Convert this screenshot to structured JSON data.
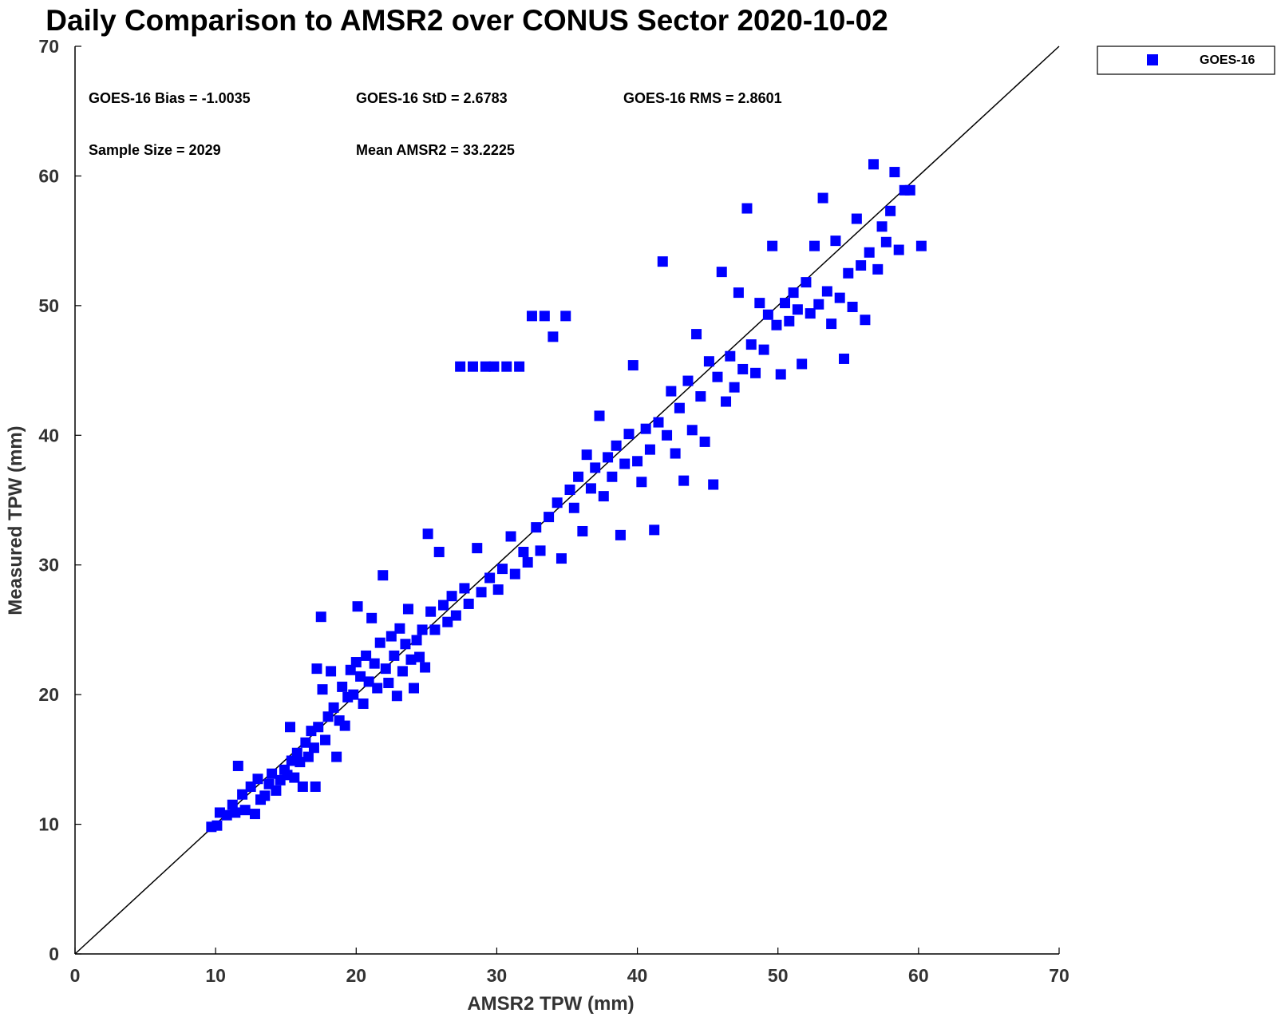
{
  "chart_data": {
    "type": "scatter",
    "title": "Daily Comparison to AMSR2 over CONUS Sector 2020-10-02",
    "xlabel": "AMSR2 TPW (mm)",
    "ylabel": "Measured TPW (mm)",
    "xlim": [
      0,
      70
    ],
    "ylim": [
      0,
      70
    ],
    "xticks": [
      "0",
      "10",
      "20",
      "30",
      "40",
      "50",
      "60",
      "70"
    ],
    "yticks": [
      "0",
      "10",
      "20",
      "30",
      "40",
      "50",
      "60",
      "70"
    ],
    "grid": false,
    "legend": {
      "position": "top-right-outside",
      "entries": [
        "GOES-16"
      ]
    },
    "reference_line": {
      "label": "1:1",
      "from": [
        0,
        0
      ],
      "to": [
        70,
        70
      ]
    },
    "stats": {
      "bias": "GOES-16 Bias = -1.0035",
      "std": "GOES-16 StD = 2.6783",
      "rms": "GOES-16 RMS = 2.8601",
      "sample_size": "Sample Size = 2029",
      "mean": "Mean AMSR2 = 33.2225"
    },
    "series": [
      {
        "name": "GOES-16",
        "color": "#0000ff",
        "marker": "square",
        "points": [
          [
            9.7,
            9.8
          ],
          [
            10.1,
            9.9
          ],
          [
            10.3,
            10.9
          ],
          [
            10.8,
            10.7
          ],
          [
            11.2,
            11.5
          ],
          [
            11.4,
            10.9
          ],
          [
            11.6,
            14.5
          ],
          [
            11.9,
            12.3
          ],
          [
            12.1,
            11.1
          ],
          [
            12.5,
            12.9
          ],
          [
            12.8,
            10.8
          ],
          [
            13.0,
            13.5
          ],
          [
            13.2,
            11.9
          ],
          [
            13.5,
            12.2
          ],
          [
            13.8,
            13.1
          ],
          [
            14.0,
            13.9
          ],
          [
            14.3,
            12.6
          ],
          [
            14.6,
            13.4
          ],
          [
            14.9,
            14.2
          ],
          [
            15.1,
            13.8
          ],
          [
            15.3,
            17.5
          ],
          [
            15.4,
            14.9
          ],
          [
            15.6,
            13.6
          ],
          [
            15.8,
            15.5
          ],
          [
            16.0,
            14.8
          ],
          [
            16.2,
            12.9
          ],
          [
            16.4,
            16.3
          ],
          [
            16.6,
            15.2
          ],
          [
            16.8,
            17.2
          ],
          [
            17.0,
            15.9
          ],
          [
            17.1,
            12.9
          ],
          [
            17.2,
            22.0
          ],
          [
            17.3,
            17.5
          ],
          [
            17.5,
            26.0
          ],
          [
            17.6,
            20.4
          ],
          [
            17.8,
            16.5
          ],
          [
            18.0,
            18.3
          ],
          [
            18.2,
            21.8
          ],
          [
            18.4,
            19.0
          ],
          [
            18.6,
            15.2
          ],
          [
            18.8,
            18.0
          ],
          [
            19.0,
            20.6
          ],
          [
            19.2,
            17.6
          ],
          [
            19.4,
            19.8
          ],
          [
            19.6,
            21.9
          ],
          [
            19.8,
            20.0
          ],
          [
            20.0,
            22.5
          ],
          [
            20.1,
            26.8
          ],
          [
            20.3,
            21.4
          ],
          [
            20.5,
            19.3
          ],
          [
            20.7,
            23.0
          ],
          [
            20.9,
            21.0
          ],
          [
            21.1,
            25.9
          ],
          [
            21.3,
            22.4
          ],
          [
            21.5,
            20.5
          ],
          [
            21.7,
            24.0
          ],
          [
            21.9,
            29.2
          ],
          [
            22.1,
            22.0
          ],
          [
            22.3,
            20.9
          ],
          [
            22.5,
            24.5
          ],
          [
            22.7,
            23.0
          ],
          [
            22.9,
            19.9
          ],
          [
            23.1,
            25.1
          ],
          [
            23.3,
            21.8
          ],
          [
            23.5,
            23.9
          ],
          [
            23.7,
            26.6
          ],
          [
            23.9,
            22.7
          ],
          [
            24.1,
            20.5
          ],
          [
            24.3,
            24.2
          ],
          [
            24.5,
            22.9
          ],
          [
            24.7,
            25.0
          ],
          [
            24.9,
            22.1
          ],
          [
            25.1,
            32.4
          ],
          [
            25.3,
            26.4
          ],
          [
            25.6,
            25.0
          ],
          [
            25.9,
            31.0
          ],
          [
            26.2,
            26.9
          ],
          [
            26.5,
            25.6
          ],
          [
            26.8,
            27.6
          ],
          [
            27.1,
            26.1
          ],
          [
            27.4,
            45.3
          ],
          [
            27.7,
            28.2
          ],
          [
            28.0,
            27.0
          ],
          [
            28.3,
            45.3
          ],
          [
            28.6,
            31.3
          ],
          [
            28.9,
            27.9
          ],
          [
            29.2,
            45.3
          ],
          [
            29.5,
            29.0
          ],
          [
            29.8,
            45.3
          ],
          [
            30.1,
            28.1
          ],
          [
            30.4,
            29.7
          ],
          [
            30.7,
            45.3
          ],
          [
            31.0,
            32.2
          ],
          [
            31.3,
            29.3
          ],
          [
            31.6,
            45.3
          ],
          [
            31.9,
            31.0
          ],
          [
            32.2,
            30.2
          ],
          [
            32.5,
            49.2
          ],
          [
            32.8,
            32.9
          ],
          [
            33.1,
            31.1
          ],
          [
            33.4,
            49.2
          ],
          [
            33.7,
            33.7
          ],
          [
            34.0,
            47.6
          ],
          [
            34.3,
            34.8
          ],
          [
            34.6,
            30.5
          ],
          [
            34.9,
            49.2
          ],
          [
            35.2,
            35.8
          ],
          [
            35.5,
            34.4
          ],
          [
            35.8,
            36.8
          ],
          [
            36.1,
            32.6
          ],
          [
            36.4,
            38.5
          ],
          [
            36.7,
            35.9
          ],
          [
            37.0,
            37.5
          ],
          [
            37.3,
            41.5
          ],
          [
            37.6,
            35.3
          ],
          [
            37.9,
            38.3
          ],
          [
            38.2,
            36.8
          ],
          [
            38.5,
            39.2
          ],
          [
            38.8,
            32.3
          ],
          [
            39.1,
            37.8
          ],
          [
            39.4,
            40.1
          ],
          [
            39.7,
            45.4
          ],
          [
            40.0,
            38.0
          ],
          [
            40.3,
            36.4
          ],
          [
            40.6,
            40.5
          ],
          [
            40.9,
            38.9
          ],
          [
            41.2,
            32.7
          ],
          [
            41.5,
            41.0
          ],
          [
            41.8,
            53.4
          ],
          [
            42.1,
            40.0
          ],
          [
            42.4,
            43.4
          ],
          [
            42.7,
            38.6
          ],
          [
            43.0,
            42.1
          ],
          [
            43.3,
            36.5
          ],
          [
            43.6,
            44.2
          ],
          [
            43.9,
            40.4
          ],
          [
            44.2,
            47.8
          ],
          [
            44.5,
            43.0
          ],
          [
            44.8,
            39.5
          ],
          [
            45.1,
            45.7
          ],
          [
            45.4,
            36.2
          ],
          [
            45.7,
            44.5
          ],
          [
            46.0,
            52.6
          ],
          [
            46.3,
            42.6
          ],
          [
            46.6,
            46.1
          ],
          [
            46.9,
            43.7
          ],
          [
            47.2,
            51.0
          ],
          [
            47.5,
            45.1
          ],
          [
            47.8,
            57.5
          ],
          [
            48.1,
            47.0
          ],
          [
            48.4,
            44.8
          ],
          [
            48.7,
            50.2
          ],
          [
            49.0,
            46.6
          ],
          [
            49.3,
            49.3
          ],
          [
            49.6,
            54.6
          ],
          [
            49.9,
            48.5
          ],
          [
            50.2,
            44.7
          ],
          [
            50.5,
            50.2
          ],
          [
            50.8,
            48.8
          ],
          [
            51.1,
            51.0
          ],
          [
            51.4,
            49.7
          ],
          [
            51.7,
            45.5
          ],
          [
            52.0,
            51.8
          ],
          [
            52.3,
            49.4
          ],
          [
            52.6,
            54.6
          ],
          [
            52.9,
            50.1
          ],
          [
            53.2,
            58.3
          ],
          [
            53.5,
            51.1
          ],
          [
            53.8,
            48.6
          ],
          [
            54.1,
            55.0
          ],
          [
            54.4,
            50.6
          ],
          [
            54.7,
            45.9
          ],
          [
            55.0,
            52.5
          ],
          [
            55.3,
            49.9
          ],
          [
            55.6,
            56.7
          ],
          [
            55.9,
            53.1
          ],
          [
            56.2,
            48.9
          ],
          [
            56.5,
            54.1
          ],
          [
            56.8,
            60.9
          ],
          [
            57.1,
            52.8
          ],
          [
            57.4,
            56.1
          ],
          [
            57.7,
            54.9
          ],
          [
            58.0,
            57.3
          ],
          [
            58.3,
            60.3
          ],
          [
            58.6,
            54.3
          ],
          [
            59.0,
            58.9
          ],
          [
            59.4,
            58.9
          ],
          [
            60.2,
            54.6
          ]
        ]
      }
    ]
  }
}
